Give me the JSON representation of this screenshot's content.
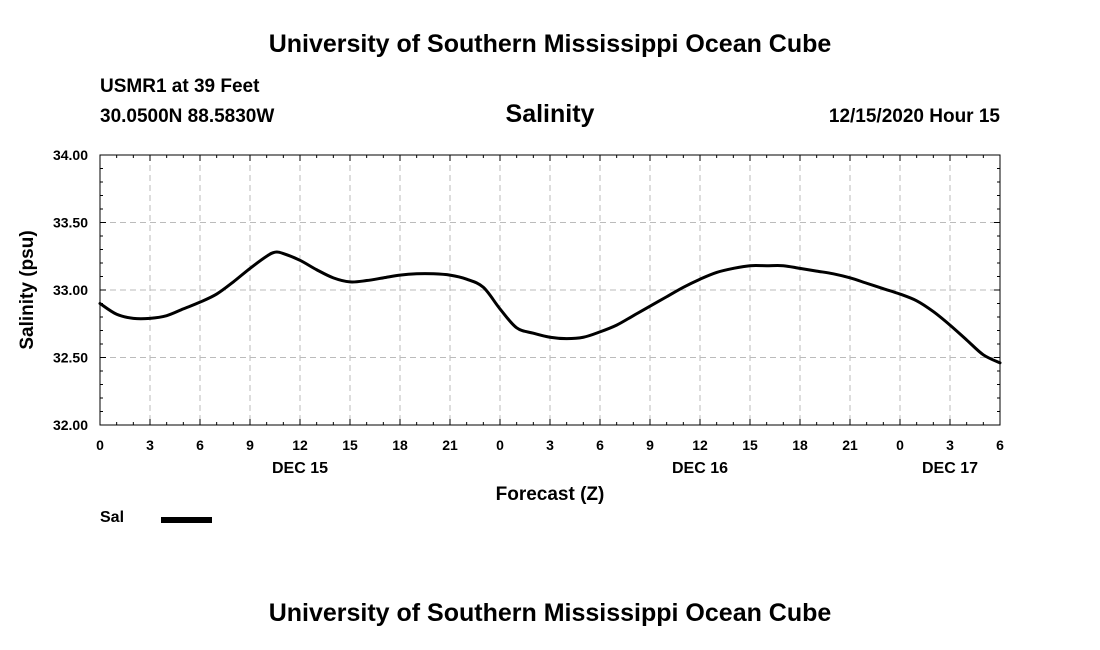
{
  "header": {
    "title": "University of Southern Mississippi Ocean Cube",
    "station": "USMR1 at 39 Feet",
    "coords": "30.0500N 88.5830W",
    "chart_title": "Salinity",
    "datetime": "12/15/2020 Hour 15"
  },
  "footer": {
    "title": "University of Southern Mississippi Ocean Cube"
  },
  "legend": {
    "label": "Sal"
  },
  "colors": {
    "line": "#000000",
    "grid": "#bbbbbb",
    "axis": "#000000"
  },
  "chart_data": {
    "type": "line",
    "title": "Salinity",
    "xlabel": "Forecast (Z)",
    "ylabel": "Salinity (psu)",
    "xlim": [
      0,
      54
    ],
    "ylim": [
      32.0,
      34.0
    ],
    "yticks": [
      "32.00",
      "32.50",
      "33.00",
      "33.50",
      "34.00"
    ],
    "ytick_values": [
      32.0,
      32.5,
      33.0,
      33.5,
      34.0
    ],
    "xtick_labels": [
      "0",
      "3",
      "6",
      "9",
      "12",
      "15",
      "18",
      "21",
      "0",
      "3",
      "6",
      "9",
      "12",
      "15",
      "18",
      "21",
      "0",
      "3",
      "6"
    ],
    "xtick_step": 3,
    "date_labels": [
      {
        "label": "DEC 15",
        "at": 12
      },
      {
        "label": "DEC 16",
        "at": 36
      },
      {
        "label": "DEC 17",
        "at": 51
      }
    ],
    "grid": true,
    "series": [
      {
        "name": "Sal",
        "x": [
          0,
          1,
          2,
          3,
          4,
          5,
          6,
          7,
          8,
          9,
          10,
          10.5,
          11,
          12,
          13,
          14,
          15,
          16,
          17,
          18,
          19,
          20,
          21,
          22,
          23,
          24,
          25,
          26,
          27,
          28,
          29,
          30,
          31,
          32,
          33,
          34,
          35,
          36,
          37,
          38,
          39,
          40,
          41,
          42,
          43,
          44,
          45,
          46,
          47,
          48,
          49,
          50,
          51,
          52,
          53,
          54
        ],
        "values": [
          32.9,
          32.82,
          32.79,
          32.79,
          32.81,
          32.86,
          32.91,
          32.97,
          33.06,
          33.16,
          33.25,
          33.28,
          33.27,
          33.22,
          33.15,
          33.09,
          33.06,
          33.07,
          33.09,
          33.11,
          33.12,
          33.12,
          33.11,
          33.08,
          33.02,
          32.86,
          32.72,
          32.68,
          32.65,
          32.64,
          32.65,
          32.69,
          32.74,
          32.81,
          32.88,
          32.95,
          33.02,
          33.08,
          33.13,
          33.16,
          33.18,
          33.18,
          33.18,
          33.16,
          33.14,
          33.12,
          33.09,
          33.05,
          33.01,
          32.97,
          32.92,
          32.84,
          32.74,
          32.63,
          32.52,
          32.46
        ]
      }
    ]
  }
}
